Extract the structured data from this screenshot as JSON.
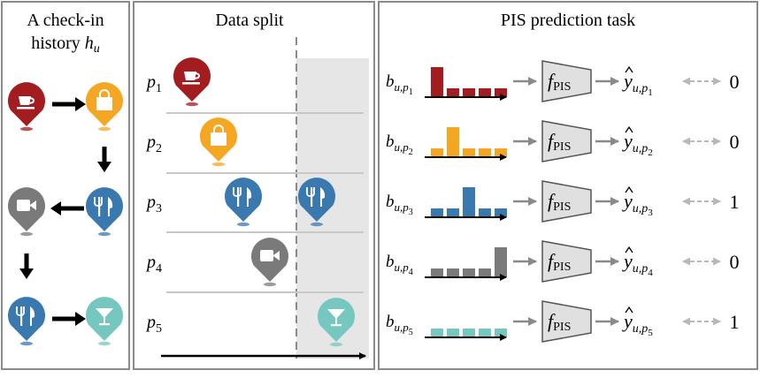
{
  "panels": {
    "history": {
      "title_line1": "A check-in",
      "title_line2": "history ",
      "title_var": "h",
      "title_sub": "u"
    },
    "split": {
      "title": "Data split"
    },
    "task": {
      "title": "PIS prediction task"
    }
  },
  "pois": [
    {
      "label": "p",
      "sub": "1",
      "icon": "cafe-cup-icon",
      "color": "#a31c1f",
      "bars": [
        34,
        10,
        10,
        10,
        10
      ],
      "b_sub": "u,p",
      "b_subsub": "1",
      "f_main": "f",
      "f_sub": "PIS",
      "y_sub": "u,p",
      "y_subsub": "1",
      "target": "0"
    },
    {
      "label": "p",
      "sub": "2",
      "icon": "shopping-bag-icon",
      "color": "#f5a623",
      "bars": [
        10,
        34,
        10,
        10,
        10
      ],
      "b_sub": "u,p",
      "b_subsub": "2",
      "f_main": "f",
      "f_sub": "PIS",
      "y_sub": "u,p",
      "y_subsub": "2",
      "target": "0"
    },
    {
      "label": "p",
      "sub": "3",
      "icon": "fork-knife-icon",
      "color": "#3a78b0",
      "bars": [
        10,
        10,
        34,
        10,
        10
      ],
      "b_sub": "u,p",
      "b_subsub": "3",
      "f_main": "f",
      "f_sub": "PIS",
      "y_sub": "u,p",
      "y_subsub": "3",
      "target": "1"
    },
    {
      "label": "p",
      "sub": "4",
      "icon": "video-camera-icon",
      "color": "#7a7a7a",
      "bars": [
        10,
        10,
        10,
        10,
        34
      ],
      "b_sub": "u,p",
      "b_subsub": "4",
      "f_main": "f",
      "f_sub": "PIS",
      "y_sub": "u,p",
      "y_subsub": "4",
      "target": "0"
    },
    {
      "label": "p",
      "sub": "5",
      "icon": "cocktail-glass-icon",
      "color": "#76c7c0",
      "bars": [
        10,
        10,
        10,
        10,
        10
      ],
      "b_sub": "u,p",
      "b_subsub": "5",
      "f_main": "f",
      "f_sub": "PIS",
      "y_sub": "u,p",
      "y_subsub": "5",
      "target": "1"
    }
  ],
  "colors": {
    "border": "#8a8a8a",
    "arrow_gray": "#8a8a8a",
    "dashed_gray": "#b0b0b0",
    "shade": "#e6e6e6",
    "divider": "#c8c8c8",
    "funnel_fill": "#e0e0e0"
  }
}
